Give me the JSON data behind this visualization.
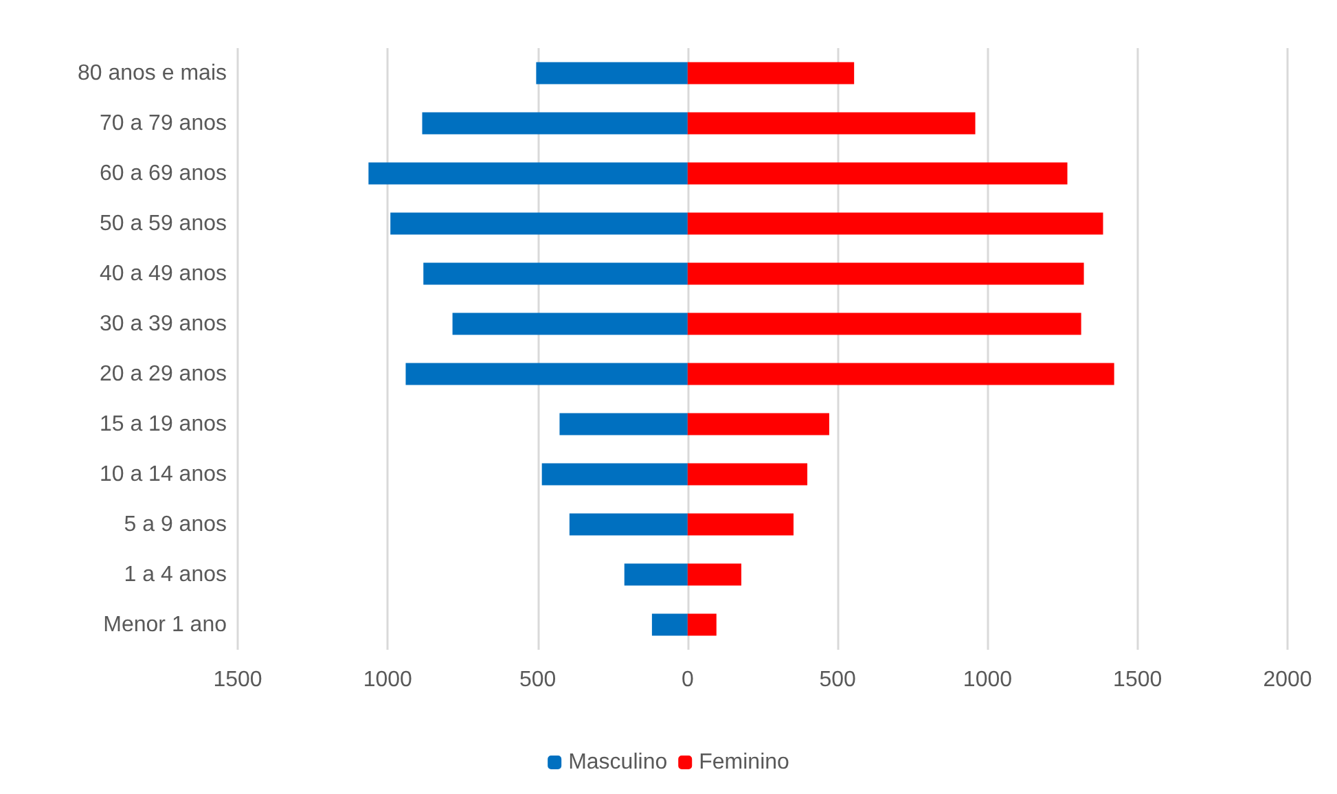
{
  "chart_data": {
    "type": "bar",
    "orientation": "horizontal",
    "categories": [
      "80 anos e mais",
      "70 a 79 anos",
      "60 a 69 anos",
      "50 a 59 anos",
      "40 a 49 anos",
      "30 a 39 anos",
      "20 a 29 anos",
      "15 a 19 anos",
      "10 a 14 anos",
      "5 a 9 anos",
      "1 a 4 anos",
      "Menor 1 ano"
    ],
    "series": [
      {
        "name": "Masculino",
        "color": "#0070c0",
        "values": [
          -505,
          -885,
          -1064,
          -991,
          -881,
          -784,
          -940,
          -427,
          -486,
          -394,
          -211,
          -119
        ]
      },
      {
        "name": "Feminino",
        "color": "#ff0000",
        "values": [
          555,
          959,
          1266,
          1385,
          1321,
          1312,
          1422,
          472,
          399,
          353,
          179,
          96
        ]
      }
    ],
    "xlim": [
      -1500,
      2000
    ],
    "xticks": [
      {
        "value": -1500,
        "label": "1500"
      },
      {
        "value": -1000,
        "label": "1000"
      },
      {
        "value": -500,
        "label": "500"
      },
      0,
      500,
      1000,
      1500,
      2000
    ],
    "stacked": true,
    "grid": "x",
    "legend": "bottom"
  }
}
